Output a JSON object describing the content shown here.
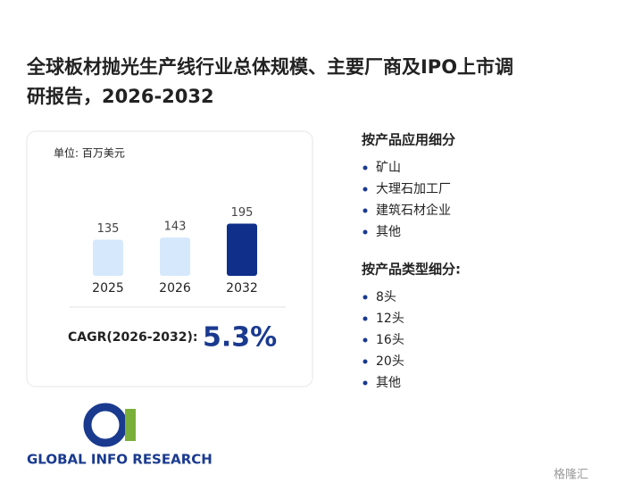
{
  "title": "全球板材抛光生产线行业总体规模、主要厂商及IPO上市调研报告，2026-2032",
  "chart_data": {
    "type": "bar",
    "unit": "单位: 百万美元",
    "categories": [
      "2025",
      "2026",
      "2032"
    ],
    "values": [
      135,
      143,
      195
    ],
    "colors": [
      "#d6e8fb",
      "#d6e8fb",
      "#0f2f8a"
    ]
  },
  "cagr": {
    "label": "CAGR(2026-2032):",
    "value": "5.3%"
  },
  "segments": [
    {
      "title": "按产品应用细分",
      "items": [
        "矿山",
        "大理石加工厂",
        "建筑石材企业",
        "其他"
      ]
    },
    {
      "title": "按产品类型细分:",
      "items": [
        "8头",
        "12头",
        "16头",
        "20头",
        "其他"
      ]
    }
  ],
  "logo": "GLOBAL INFO RESEARCH",
  "watermark": "格隆汇"
}
